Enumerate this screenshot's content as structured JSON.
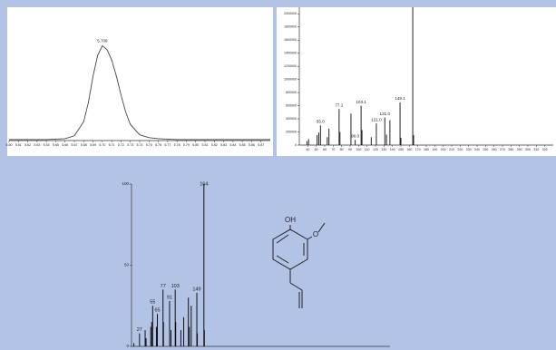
{
  "chart_data": [
    {
      "type": "line",
      "peak_label": "5.709",
      "color": "#444",
      "x": [
        5.6,
        5.62,
        5.64,
        5.66,
        5.67,
        5.68,
        5.685,
        5.69,
        5.695,
        5.7,
        5.705,
        5.71,
        5.715,
        5.72,
        5.725,
        5.73,
        5.74,
        5.75,
        5.76,
        5.78,
        5.8,
        5.84,
        5.88
      ],
      "values": [
        1,
        1,
        1,
        2,
        5,
        20,
        40,
        68,
        90,
        100,
        96,
        85,
        68,
        48,
        30,
        17,
        6,
        3,
        2,
        1,
        1,
        1,
        1
      ],
      "xlim": [
        5.6,
        5.88
      ],
      "ylim": [
        0,
        110
      ],
      "xticks": [
        {
          "value": 5.6,
          "label": "5.60"
        },
        5.61,
        5.62,
        5.63,
        5.64,
        5.65,
        5.66,
        5.67,
        5.68,
        5.69,
        {
          "value": 5.7,
          "label": "5.70"
        },
        5.71,
        5.72,
        5.73,
        5.74,
        5.75,
        5.76,
        5.77,
        5.78,
        5.79,
        {
          "value": 5.8,
          "label": "5.80"
        },
        5.81,
        5.82,
        5.83,
        5.84,
        5.85,
        5.86,
        5.87
      ]
    },
    {
      "type": "bar",
      "color": "#222",
      "x": [
        39,
        41,
        51,
        53,
        55,
        63,
        65,
        77,
        78,
        91,
        96,
        103,
        104,
        115,
        121,
        131,
        133,
        137,
        149,
        150,
        164,
        165
      ],
      "values": [
        60000,
        90000,
        150000,
        190000,
        300000,
        120000,
        250000,
        550000,
        200000,
        480000,
        80000,
        600000,
        230000,
        120000,
        330000,
        420000,
        160000,
        380000,
        650000,
        110000,
        2200000,
        150000
      ],
      "peak_labels": [
        null,
        null,
        null,
        null,
        "55.0",
        null,
        null,
        "77.1",
        null,
        null,
        "96.0",
        "103.1",
        null,
        null,
        "121.0",
        "131.0",
        null,
        null,
        "149.1",
        null,
        null,
        null
      ],
      "xlim": [
        30,
        330
      ],
      "ylim": [
        0,
        2100000
      ],
      "xticks": [
        40,
        50,
        60,
        70,
        80,
        90,
        100,
        110,
        120,
        130,
        140,
        150,
        160,
        170,
        180,
        190,
        200,
        210,
        220,
        230,
        240,
        250,
        260,
        270,
        280,
        290,
        300,
        310,
        320
      ],
      "yticks": [
        0,
        200000,
        400000,
        600000,
        800000,
        1000000,
        1200000,
        1400000,
        1600000,
        1800000,
        2000000
      ]
    },
    {
      "type": "bar",
      "color": "#111",
      "x": [
        15,
        27,
        39,
        41,
        51,
        53,
        55,
        63,
        65,
        77,
        78,
        91,
        94,
        103,
        104,
        115,
        121,
        131,
        133,
        137,
        149,
        150,
        164,
        165
      ],
      "values": [
        2,
        8,
        10,
        5,
        12,
        15,
        25,
        12,
        20,
        35,
        15,
        28,
        10,
        35,
        15,
        10,
        18,
        30,
        12,
        25,
        33,
        8,
        100,
        10
      ],
      "peak_labels": [
        null,
        "27",
        null,
        null,
        null,
        null,
        "55",
        null,
        "65",
        "77",
        null,
        "91",
        null,
        "103",
        null,
        null,
        null,
        null,
        null,
        null,
        "149",
        null,
        "164",
        null
      ],
      "xlim": [
        10,
        560
      ],
      "ylim": [
        0,
        100
      ],
      "yticks": [
        0,
        50,
        100
      ]
    }
  ],
  "structure": {
    "hydroxyl": "OH",
    "methoxy": "O"
  }
}
